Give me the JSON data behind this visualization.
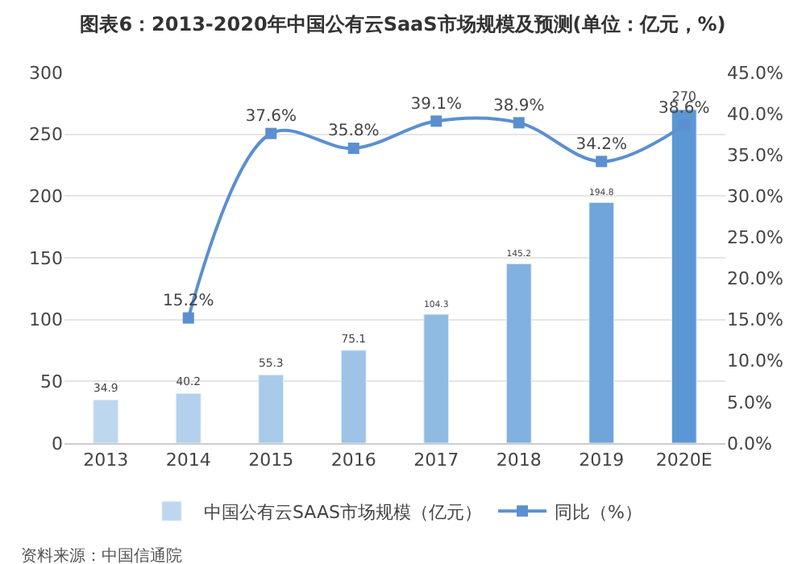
{
  "chart_data": {
    "type": "bar",
    "title": "图表6：2013-2020年中国公有云SaaS市场规模及预测(单位：亿元，%)",
    "categories": [
      "2013",
      "2014",
      "2015",
      "2016",
      "2017",
      "2018",
      "2019",
      "2020E"
    ],
    "series": [
      {
        "name": "中国公有云SAAS市场规模（亿元）",
        "color": "#9dc3e6",
        "colors": [
          "#bdd7ee",
          "#b3d1ec",
          "#a8cbea",
          "#9dc3e6",
          "#8fbbe3",
          "#80b1df",
          "#6fa5da",
          "#5b97d4"
        ],
        "values": [
          34.9,
          40.2,
          55.3,
          75.1,
          104.3,
          145.2,
          194.8,
          270
        ],
        "value_labels": [
          "34.9",
          "40.2",
          "55.3",
          "75.1",
          "104.3",
          "145.2",
          "194.8",
          "270"
        ]
      },
      {
        "name": "同比（%）",
        "type": "line",
        "axis": "y2",
        "color": "#5b8fd0",
        "values": [
          null,
          15.2,
          37.6,
          35.8,
          39.1,
          38.9,
          34.2,
          38.6
        ],
        "value_labels": [
          null,
          "15.2%",
          "37.6%",
          "35.8%",
          "39.1%",
          "38.9%",
          "34.2%",
          "38.6%"
        ]
      }
    ],
    "ylim": [
      0,
      300
    ],
    "yticks": [
      0,
      50,
      100,
      150,
      200,
      250,
      300
    ],
    "y2lim": [
      0,
      45
    ],
    "y2ticks": [
      {
        "value": 0,
        "label": "0.0%"
      },
      {
        "value": 5,
        "label": "5.0%"
      },
      {
        "value": 10,
        "label": "10.0%"
      },
      {
        "value": 15,
        "label": "15.0%"
      },
      {
        "value": 20,
        "label": "20.0%"
      },
      {
        "value": 25,
        "label": "25.0%"
      },
      {
        "value": 30,
        "label": "30.0%"
      },
      {
        "value": 35,
        "label": "35.0%"
      },
      {
        "value": 40,
        "label": "40.0%"
      },
      {
        "value": 45,
        "label": "45.0%"
      }
    ],
    "grid": "y",
    "legend": "bottom",
    "marker": "square",
    "annotations": [
      "资料来源：中国信通院"
    ]
  }
}
